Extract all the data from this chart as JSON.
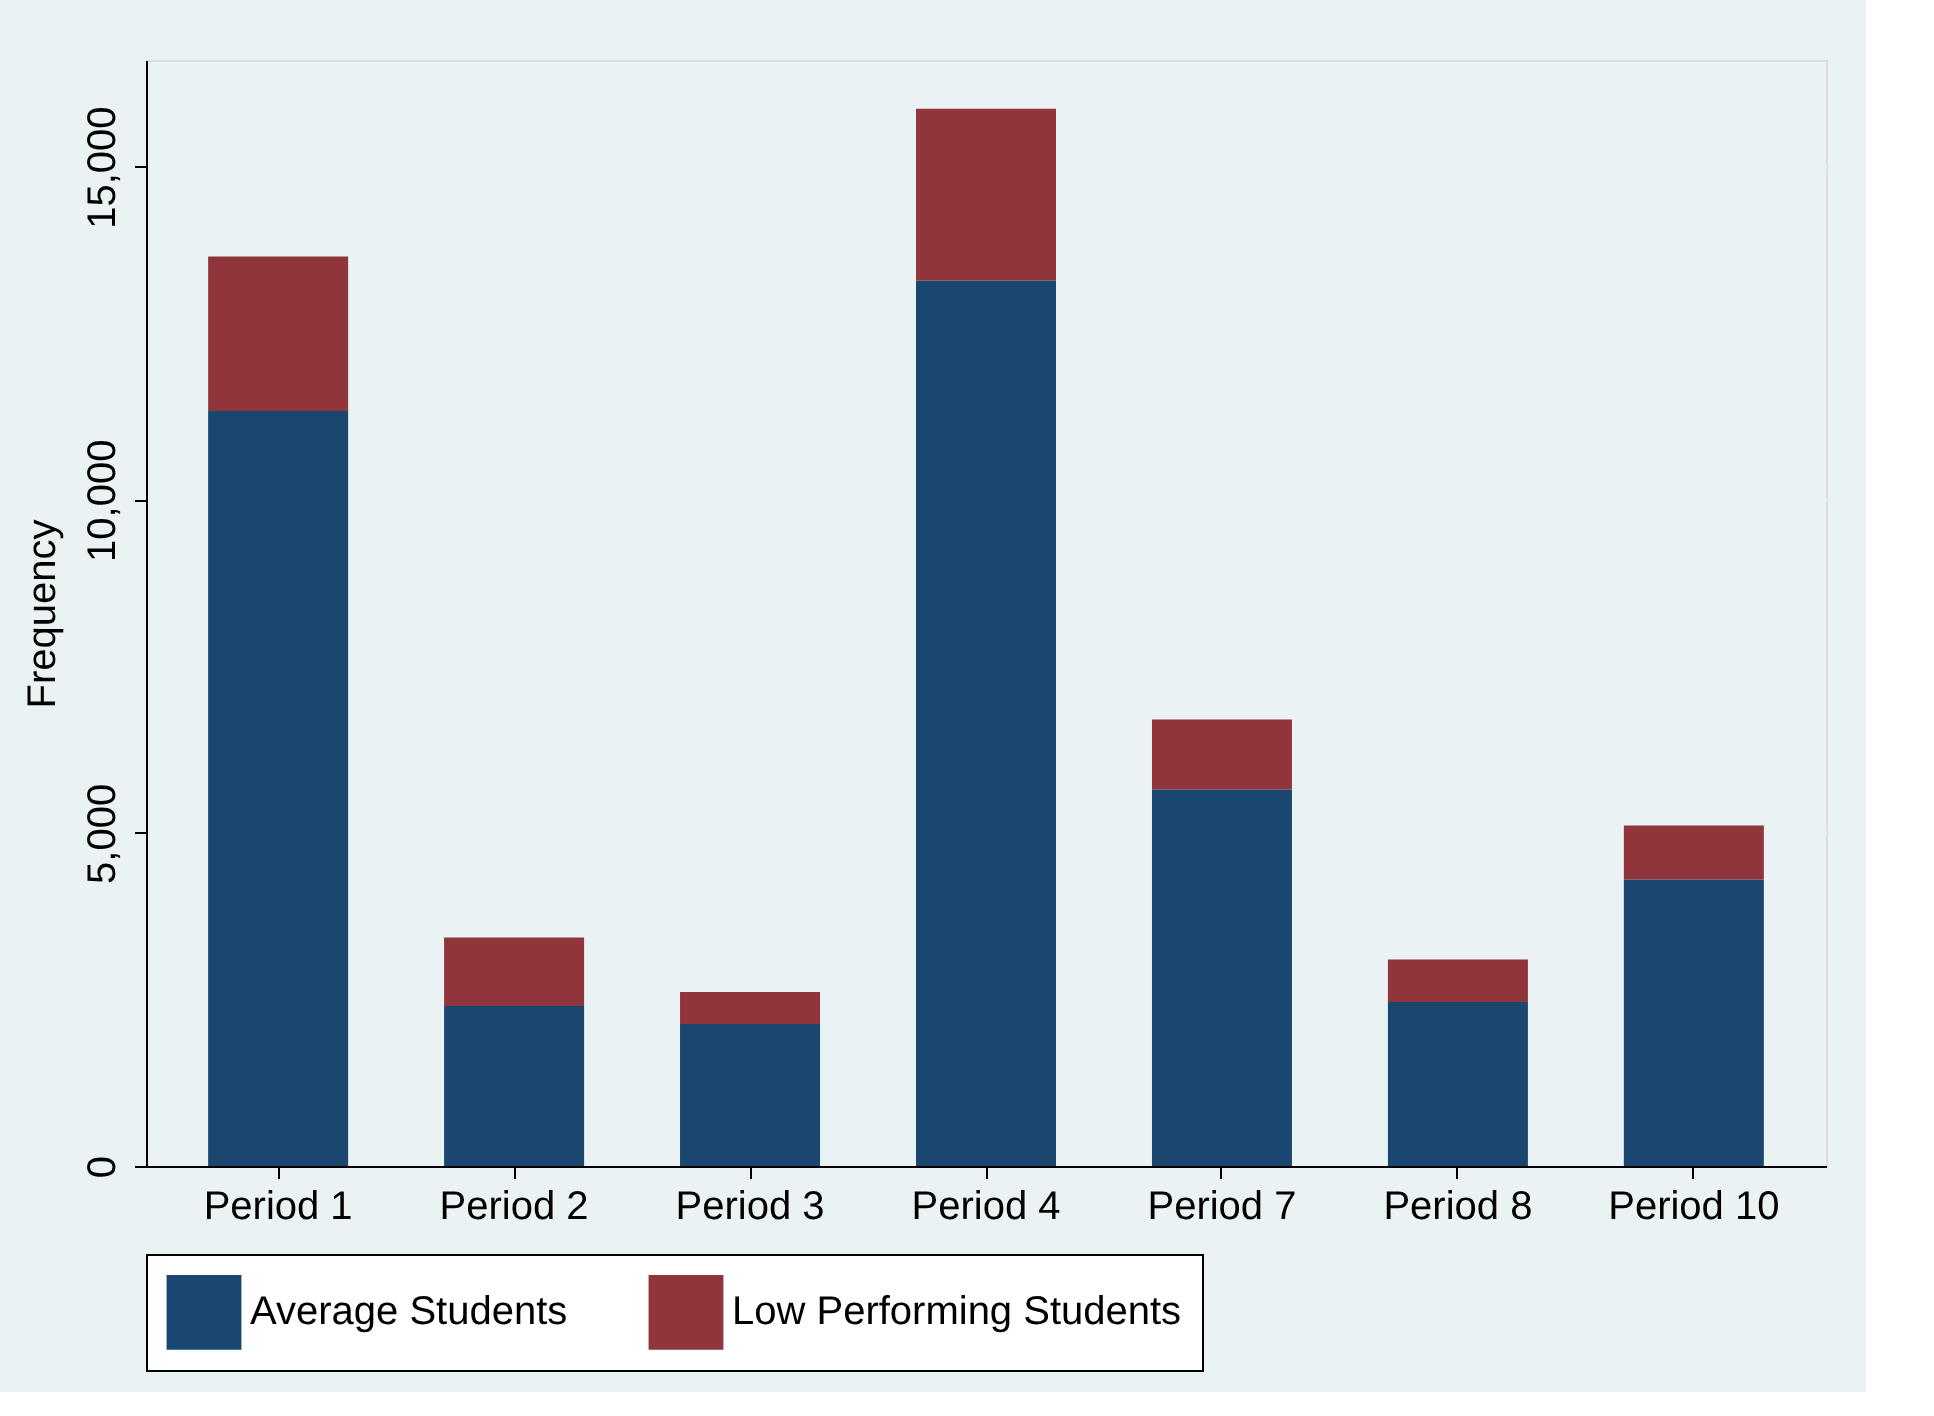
{
  "chart_data": {
    "type": "bar",
    "stacked": true,
    "ylabel": "Frequency",
    "categories": [
      "Period 1",
      "Period 2",
      "Period 3",
      "Period 4",
      "Period 7",
      "Period 8",
      "Period 10"
    ],
    "series": [
      {
        "name": "Average Students",
        "color": "#1a476f",
        "values": [
          11330,
          2400,
          2130,
          13290,
          5650,
          2460,
          4300
        ]
      },
      {
        "name": "Low Performing Students",
        "color": "#90353b",
        "values": [
          2320,
          1030,
          480,
          2580,
          1050,
          640,
          810
        ]
      }
    ],
    "ylim": [
      0,
      16600
    ],
    "yticks": [
      {
        "value": 0,
        "label": "0"
      },
      {
        "value": 5000,
        "label": "5,000"
      },
      {
        "value": 10000,
        "label": "10,000"
      },
      {
        "value": 15000,
        "label": "15,000"
      }
    ],
    "grid": "y",
    "legend": "bottom"
  }
}
